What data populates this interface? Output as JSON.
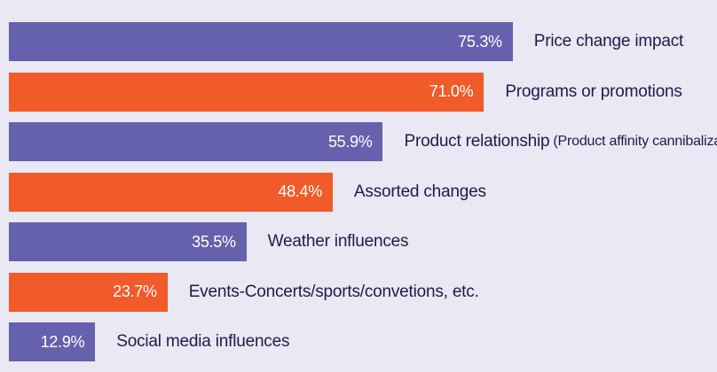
{
  "chart_data": {
    "type": "bar",
    "orientation": "horizontal",
    "categories": [
      "Price change impact",
      "Programs or promotions",
      "Product relationship",
      "Assorted changes",
      "Weather influences",
      "Events-Concerts/sports/convetions, etc.",
      "Social media influences"
    ],
    "subtitles": [
      "",
      "",
      "(Product affinity cannibalization)",
      "",
      "",
      "",
      ""
    ],
    "values": [
      75.3,
      71.0,
      55.9,
      48.4,
      35.5,
      23.7,
      12.9
    ],
    "value_labels": [
      "75.3%",
      "71.0%",
      "55.9%",
      "48.4%",
      "35.5%",
      "23.7%",
      "12.9%"
    ],
    "colors": [
      "#6561ad",
      "#f15a29",
      "#6561ad",
      "#f15a29",
      "#6561ad",
      "#f15a29",
      "#6561ad"
    ],
    "title": "",
    "xlabel": "",
    "ylabel": "",
    "grid": false,
    "legend": "none"
  }
}
